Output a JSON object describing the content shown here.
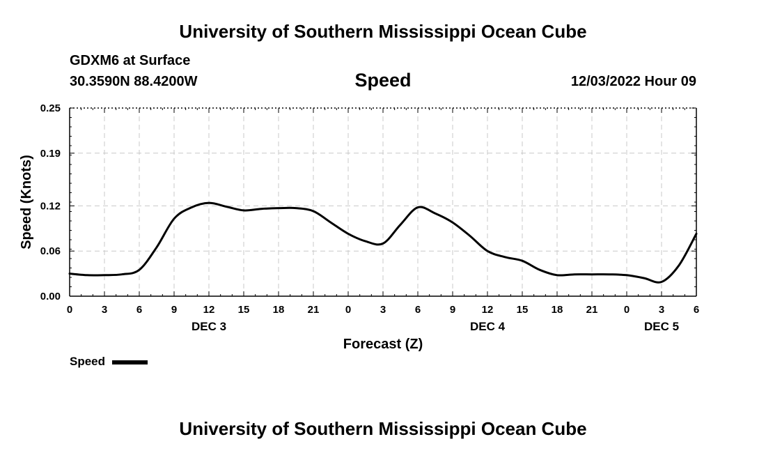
{
  "page": {
    "title_top": "University of Southern Mississippi Ocean Cube",
    "title_bottom": "University of Southern Mississippi Ocean Cube",
    "station": "GDXM6 at Surface",
    "coords": "30.3590N  88.4200W",
    "datetime": "12/03/2022 Hour 09"
  },
  "chart_data": {
    "type": "line",
    "title": "Speed",
    "xlabel": "Forecast (Z)",
    "ylabel": "Speed (Knots)",
    "ylim": [
      0,
      0.25
    ],
    "xlim": [
      0,
      54
    ],
    "y_ticks": [
      0.0,
      0.06,
      0.12,
      0.19,
      0.25
    ],
    "y_tick_labels": [
      "0.00",
      "0.06",
      "0.12",
      "0.19",
      "0.25"
    ],
    "x_ticks": [
      0,
      3,
      6,
      9,
      12,
      15,
      18,
      21,
      24,
      27,
      30,
      33,
      36,
      39,
      42,
      45,
      48,
      51,
      54
    ],
    "x_tick_labels": [
      "0",
      "3",
      "6",
      "9",
      "12",
      "15",
      "18",
      "21",
      "0",
      "3",
      "6",
      "9",
      "12",
      "15",
      "18",
      "21",
      "0",
      "3",
      "6"
    ],
    "day_labels": [
      {
        "x": 12,
        "label": "DEC 3"
      },
      {
        "x": 36,
        "label": "DEC 4"
      },
      {
        "x": 51,
        "label": "DEC 5"
      }
    ],
    "grid": true,
    "legend": {
      "label": "Speed",
      "position": "bottom-left"
    },
    "series": [
      {
        "name": "Speed",
        "color": "#000000",
        "x": [
          0,
          1.5,
          3,
          4.5,
          6,
          7.5,
          9,
          10.5,
          12,
          13.5,
          15,
          16.5,
          18,
          19.5,
          21,
          22.5,
          24,
          25.5,
          27,
          28.5,
          30,
          31.5,
          33,
          34.5,
          36,
          37.5,
          39,
          40.5,
          42,
          43.5,
          45,
          46.5,
          48,
          49.5,
          51,
          52.5,
          54
        ],
        "values": [
          0.03,
          0.028,
          0.028,
          0.029,
          0.035,
          0.065,
          0.103,
          0.118,
          0.124,
          0.119,
          0.114,
          0.116,
          0.117,
          0.117,
          0.113,
          0.098,
          0.083,
          0.073,
          0.07,
          0.095,
          0.118,
          0.11,
          0.098,
          0.08,
          0.06,
          0.052,
          0.047,
          0.035,
          0.028,
          0.029,
          0.029,
          0.029,
          0.028,
          0.024,
          0.019,
          0.041,
          0.083
        ]
      }
    ]
  }
}
